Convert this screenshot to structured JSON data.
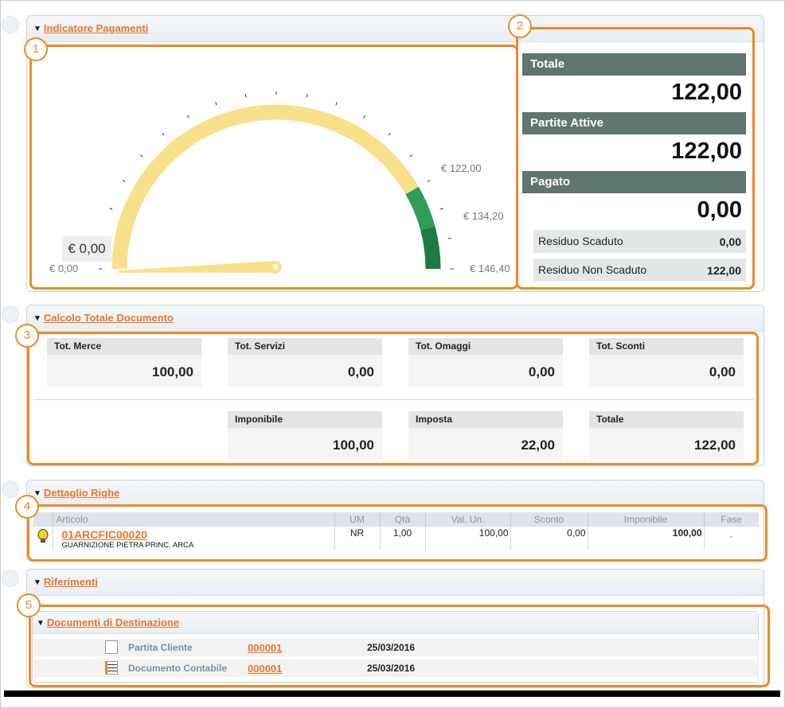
{
  "sections": {
    "pagamenti": "Indicatore Pagamenti",
    "calcolo": "Calcolo Totale Documento",
    "dettaglio": "Dettaglio Righe",
    "riferimenti": "Riferimenti",
    "destinazione": "Documenti di Destinazione"
  },
  "callouts": [
    "1",
    "2",
    "3",
    "4",
    "5"
  ],
  "gauge": {
    "current_value": "€ 0,00",
    "min_label": "€ 0,00",
    "tick_labels": [
      "€ 122,00",
      "€ 134,20",
      "€ 146,40"
    ],
    "fraction": 0,
    "bands": [
      {
        "from": 0,
        "to": 122.0,
        "color": "#f8e08a"
      },
      {
        "from": 122.0,
        "to": 134.2,
        "color": "#2f9c5a"
      },
      {
        "from": 134.2,
        "to": 146.4,
        "color": "#1f7a45"
      }
    ]
  },
  "summary": {
    "totale_label": "Totale",
    "totale_value": "122,00",
    "partite_label": "Partite Attive",
    "partite_value": "122,00",
    "pagato_label": "Pagato",
    "pagato_value": "0,00",
    "residuo_scaduto_label": "Residuo Scaduto",
    "residuo_scaduto_value": "0,00",
    "residuo_non_scaduto_label": "Residuo Non Scaduto",
    "residuo_non_scaduto_value": "122,00"
  },
  "totali": {
    "merce_label": "Tot. Merce",
    "merce_value": "100,00",
    "servizi_label": "Tot. Servizi",
    "servizi_value": "0,00",
    "omaggi_label": "Tot. Omaggi",
    "omaggi_value": "0,00",
    "sconti_label": "Tot. Sconti",
    "sconti_value": "0,00",
    "imponibile_label": "Imponibile",
    "imponibile_value": "100,00",
    "imposta_label": "Imposta",
    "imposta_value": "22,00",
    "totale_label": "Totale",
    "totale_value": "122,00"
  },
  "righe": {
    "headers": [
      "Articolo",
      "UM",
      "Qtà",
      "Val. Un.",
      "Sconto",
      "Imponibile",
      "Fase"
    ],
    "row": {
      "code": "01ARCFIC00020",
      "description": "GUARNIZIONE PIETRA PRINC. ARCA",
      "um": "NR",
      "qta": "1,00",
      "val_un": "100,00",
      "sconto": "0,00",
      "imponibile": "100,00",
      "fase": "-"
    }
  },
  "destinazione": {
    "rows": [
      {
        "label": "Partita Cliente",
        "code": "000001",
        "date": "25/03/2016"
      },
      {
        "label": "Documento Contabile",
        "code": "000001",
        "date": "25/03/2016"
      }
    ]
  }
}
